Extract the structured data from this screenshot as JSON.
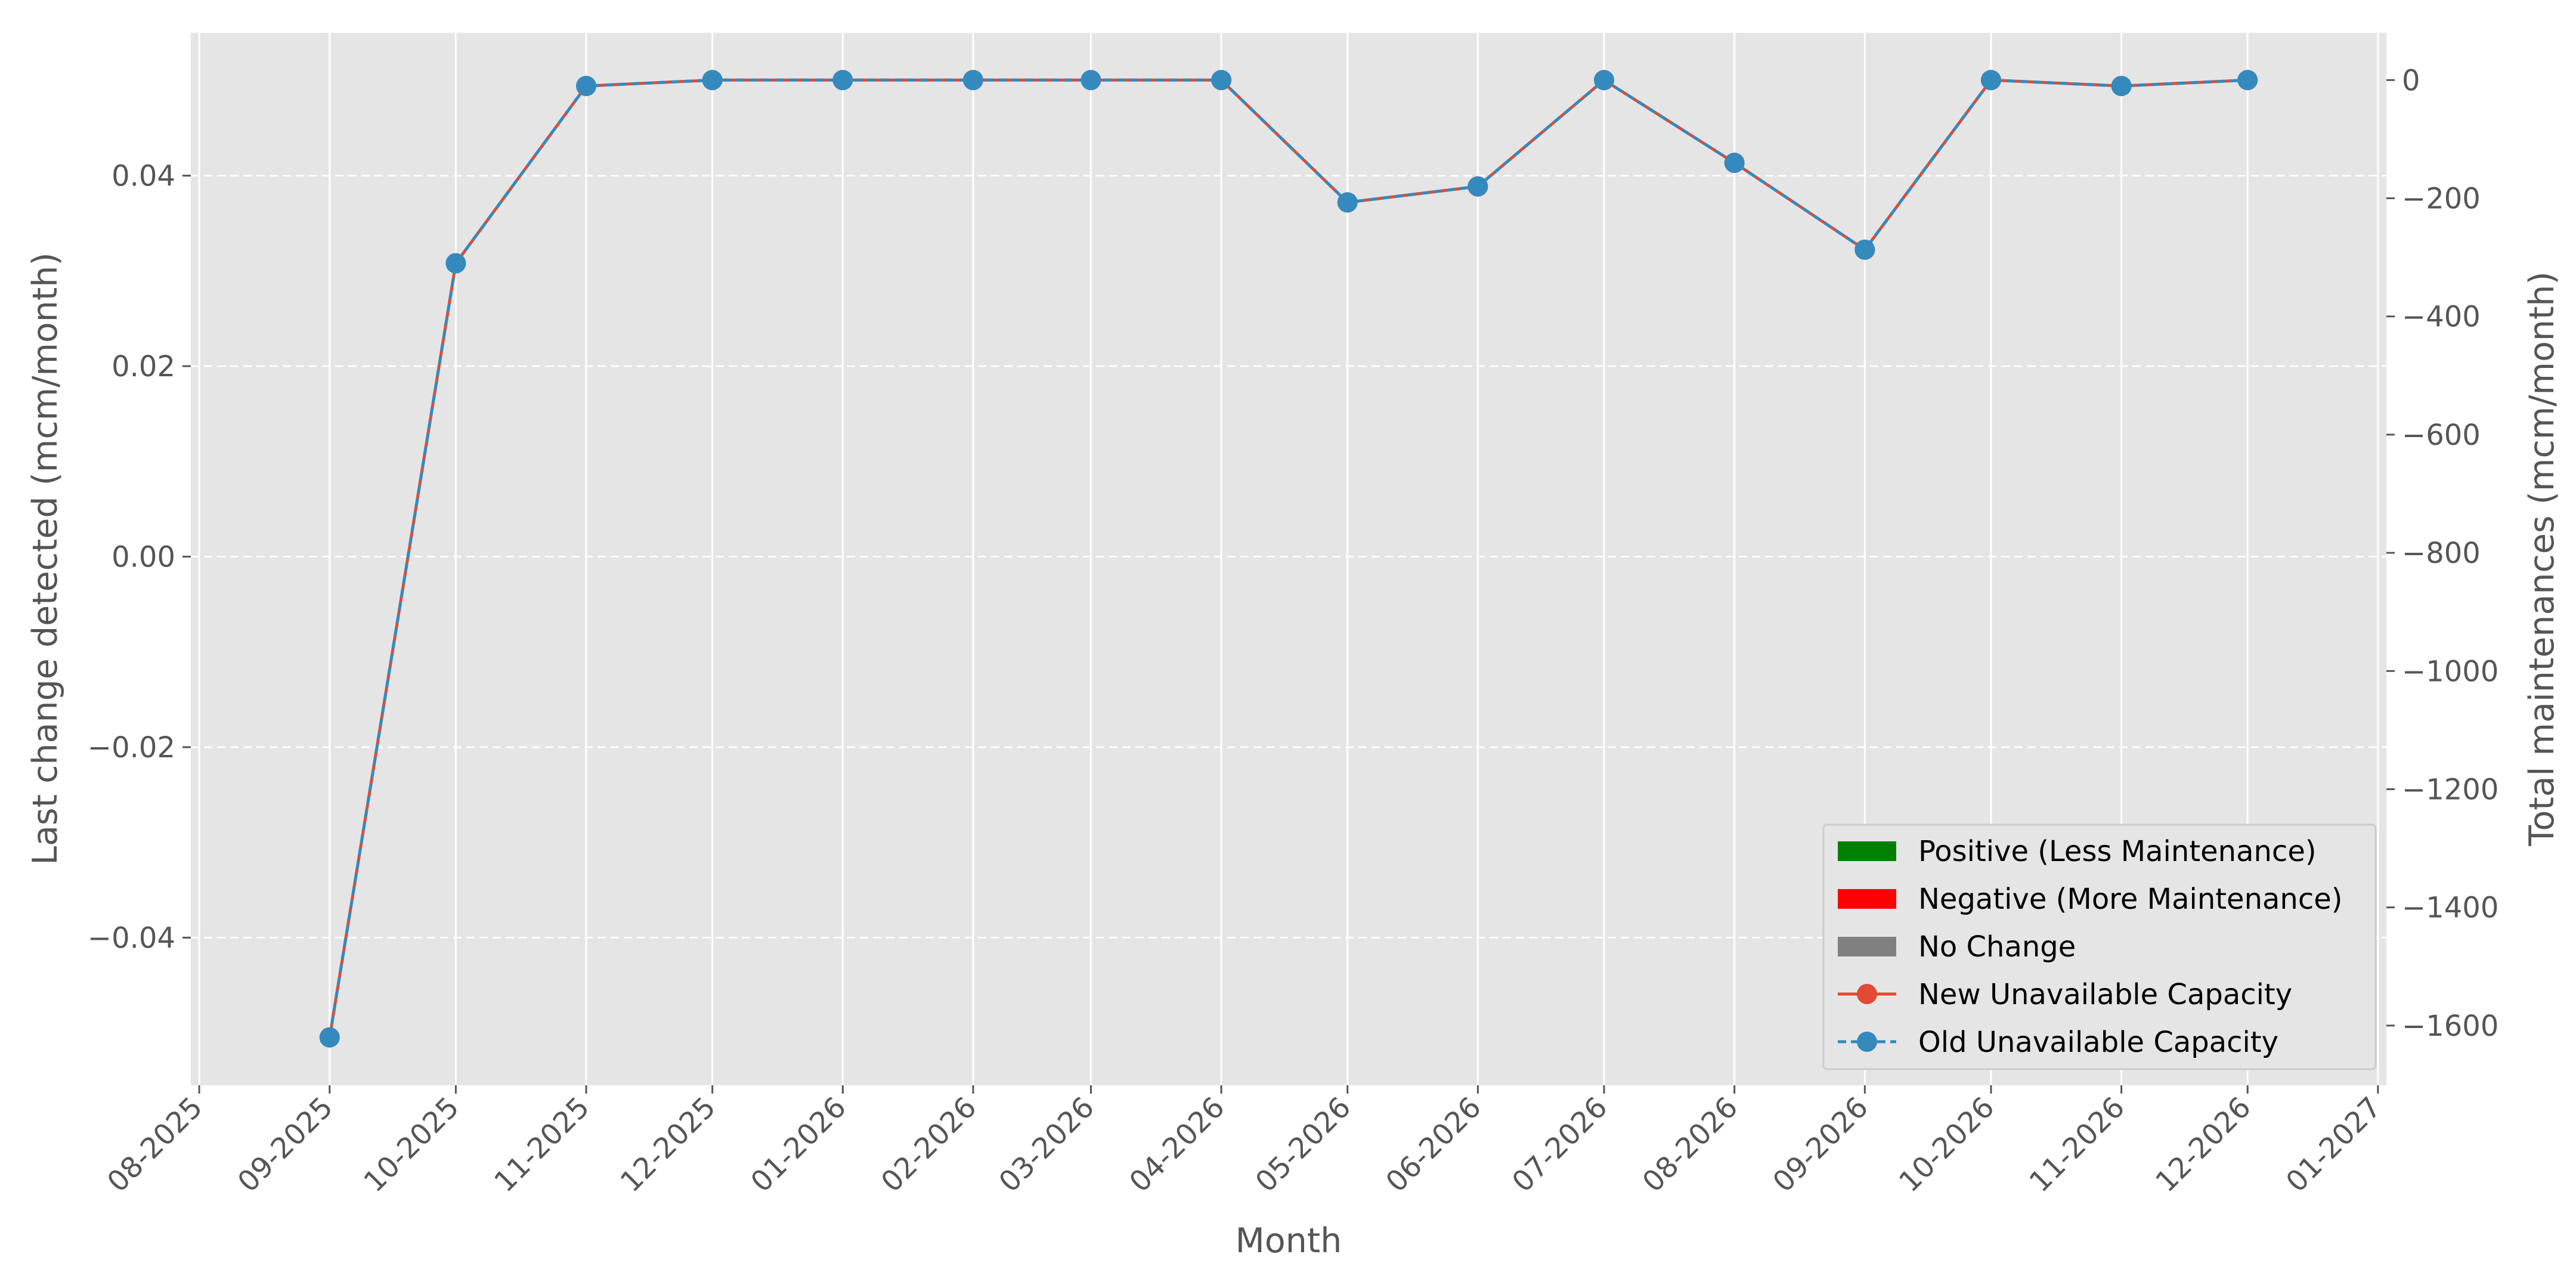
{
  "chart_data": {
    "type": "line",
    "xlabel": "Month",
    "ylabel_left": "Last change detected (mcm/month)",
    "ylabel_right": "Total maintenances (mcm/month)",
    "x_ticks": [
      "08-2025",
      "09-2025",
      "10-2025",
      "11-2025",
      "12-2025",
      "01-2026",
      "02-2026",
      "03-2026",
      "04-2026",
      "05-2026",
      "06-2026",
      "07-2026",
      "08-2026",
      "09-2026",
      "10-2026",
      "11-2026",
      "12-2026",
      "01-2027"
    ],
    "y_left_ticks": [
      "0.04",
      "0.02",
      "0.00",
      "−0.02",
      "−0.04"
    ],
    "y_left_tick_values": [
      0.04,
      0.02,
      0.0,
      -0.02,
      -0.04
    ],
    "y_left_lim": [
      -0.0555,
      0.055
    ],
    "y_right_ticks": [
      "0",
      "−200",
      "−400",
      "−600",
      "−800",
      "−1000",
      "−1200",
      "−1400",
      "−1600"
    ],
    "y_right_tick_values": [
      0,
      -200,
      -400,
      -600,
      -800,
      -1000,
      -1200,
      -1400,
      -1600
    ],
    "y_right_lim": [
      -1701,
      80
    ],
    "x_dates": [
      "2025-09-01",
      "2025-10-01",
      "2025-11-01",
      "2025-12-01",
      "2026-01-01",
      "2026-02-01",
      "2026-03-01",
      "2026-04-01",
      "2026-05-01",
      "2026-06-01",
      "2026-07-01",
      "2026-08-01",
      "2026-09-01",
      "2026-10-01",
      "2026-11-01",
      "2026-12-01"
    ],
    "x_range": [
      "2025-07-30",
      "2027-01-03"
    ],
    "series": [
      {
        "name": "New Unavailable Capacity",
        "color": "#E24A33",
        "style": "solid",
        "axis": "right",
        "values": [
          -1620,
          -310,
          -10,
          0,
          0,
          0,
          0,
          0,
          -207,
          -180,
          0,
          -140,
          -287,
          0,
          -10,
          0
        ]
      },
      {
        "name": "Old Unavailable Capacity",
        "color": "#348ABD",
        "style": "dashed",
        "axis": "right",
        "values": [
          -1620,
          -310,
          -10,
          0,
          0,
          0,
          0,
          0,
          -207,
          -180,
          0,
          -140,
          -287,
          0,
          -10,
          0
        ]
      }
    ],
    "bars": [],
    "legend": {
      "position": "lower-right",
      "entries": [
        {
          "label": "Positive (Less Maintenance)",
          "color": "#008000",
          "kind": "patch"
        },
        {
          "label": "Negative (More Maintenance)",
          "color": "#FF0000",
          "kind": "patch"
        },
        {
          "label": "No Change",
          "color": "#808080",
          "kind": "patch"
        },
        {
          "label": "New Unavailable Capacity",
          "color": "#E24A33",
          "kind": "line-solid"
        },
        {
          "label": "Old Unavailable Capacity",
          "color": "#348ABD",
          "kind": "line-dashed"
        }
      ]
    },
    "grid": true,
    "background": "#E5E5E5"
  }
}
